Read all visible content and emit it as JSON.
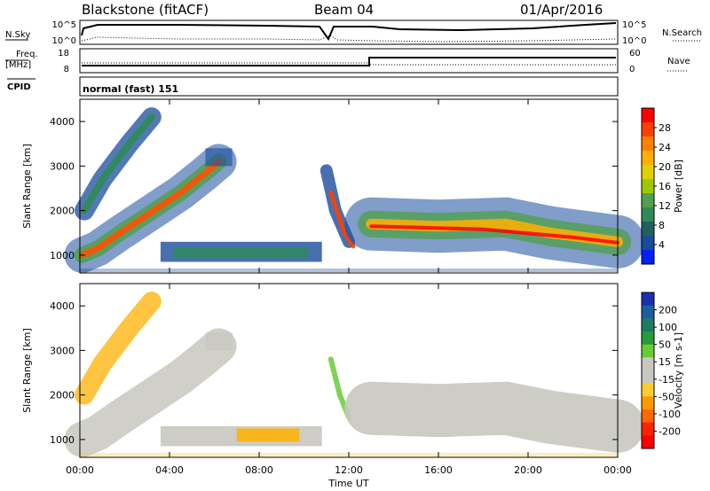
{
  "header": {
    "station": "Blackstone (fitACF)",
    "beam": "Beam 04",
    "date": "01/Apr/2016"
  },
  "top_panels": {
    "nsky_label": "N.Sky",
    "nsky_ticks": [
      "10^5",
      "10^0"
    ],
    "nsearch_label": "N.Search",
    "nsearch_ticks": [
      "10^5",
      "10^0"
    ],
    "freq_label_1": "Freq.",
    "freq_label_2": "[MHz]",
    "freq_ticks": [
      "18",
      "8"
    ],
    "nave_label": "Nave",
    "nave_ticks": [
      "60",
      "0"
    ],
    "cpid_label": "CPID",
    "cpid_text": "normal (fast) 151"
  },
  "chart_data": [
    {
      "type": "heatmap",
      "name": "power-panel",
      "ylabel": "Slant Range [km]",
      "y_ticks": [
        1000,
        2000,
        3000,
        4000
      ],
      "ylim": [
        600,
        4500
      ],
      "xlim": [
        0,
        24
      ],
      "colorbar_label": "Power [dB]",
      "colorbar_ticks": [
        "28",
        "24",
        "20",
        "16",
        "12",
        "8",
        "4"
      ],
      "colorbar_colors": [
        "#ff0000",
        "#ff4000",
        "#ff8000",
        "#ffb000",
        "#e0d000",
        "#a0c800",
        "#50a050",
        "#2e8b57",
        "#206060",
        "#1a4c9c",
        "#0020ff"
      ]
    },
    {
      "type": "heatmap",
      "name": "velocity-panel",
      "ylabel": "Slant Range [km]",
      "y_ticks": [
        1000,
        2000,
        3000,
        4000
      ],
      "ylim": [
        600,
        4500
      ],
      "xlim": [
        0,
        24
      ],
      "xlabel": "Time UT",
      "x_ticks": [
        "00:00",
        "04:00",
        "08:00",
        "12:00",
        "16:00",
        "20:00",
        "00:00"
      ],
      "colorbar_label": "Velocity [m s-1]",
      "colorbar_ticks": [
        "200",
        "100",
        "50",
        "15",
        "-15",
        "-50",
        "-100",
        "-200"
      ],
      "colorbar_colors": [
        "#1c2fb0",
        "#1c5fa0",
        "#1e7a60",
        "#2a9a3a",
        "#66cc33",
        "#c8c8c0",
        "#c8c8c0",
        "#ffcc33",
        "#ff9900",
        "#ff6600",
        "#ff2200",
        "#ff0000"
      ]
    }
  ]
}
